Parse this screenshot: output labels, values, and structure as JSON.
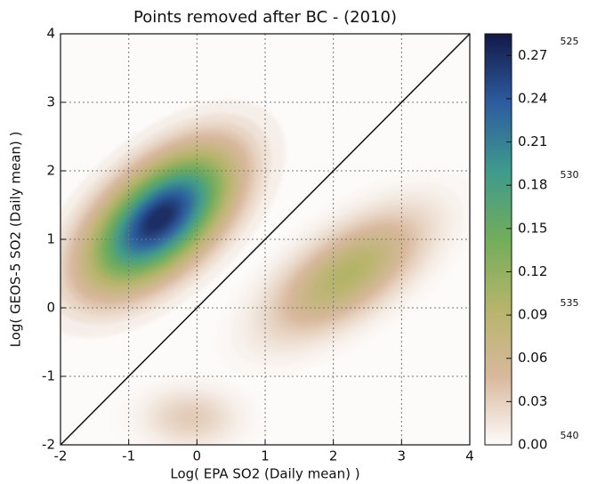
{
  "chart_data": {
    "type": "density",
    "title": "Points removed after BC - (2010)",
    "xlabel": "Log( EPA SO2 (Daily mean) )",
    "ylabel": "Log( GEOS-5 SO2 (Daily mean) )",
    "xlim": [
      -2,
      4
    ],
    "ylim": [
      -2,
      4
    ],
    "xticks": [
      -2,
      -1,
      0,
      1,
      2,
      3,
      4
    ],
    "yticks": [
      -2,
      -1,
      0,
      1,
      2,
      3,
      4
    ],
    "grid": true,
    "modes": [
      {
        "x": -0.55,
        "y": 1.3,
        "value": 0.28
      },
      {
        "x": 2.2,
        "y": 0.5,
        "value": 0.1
      },
      {
        "x": -0.1,
        "y": -1.6,
        "value": 0.035
      }
    ],
    "clim": [
      0,
      0.285
    ],
    "colormap": [
      "#fdfbfa",
      "#d8b89c",
      "#b6b46a",
      "#72ad5a",
      "#3e9a8c",
      "#2d5c9f",
      "#121848"
    ],
    "colorbar_ticks": [
      0.0,
      0.03,
      0.06,
      0.09,
      0.12,
      0.15,
      0.18,
      0.21,
      0.24,
      0.27
    ],
    "colorbar_tick_labels": [
      "0.00",
      "0.03",
      "0.06",
      "0.09",
      "0.12",
      "0.15",
      "0.18",
      "0.21",
      "0.24",
      "0.27"
    ],
    "margin_numbers": [
      525,
      530,
      535,
      540
    ]
  }
}
